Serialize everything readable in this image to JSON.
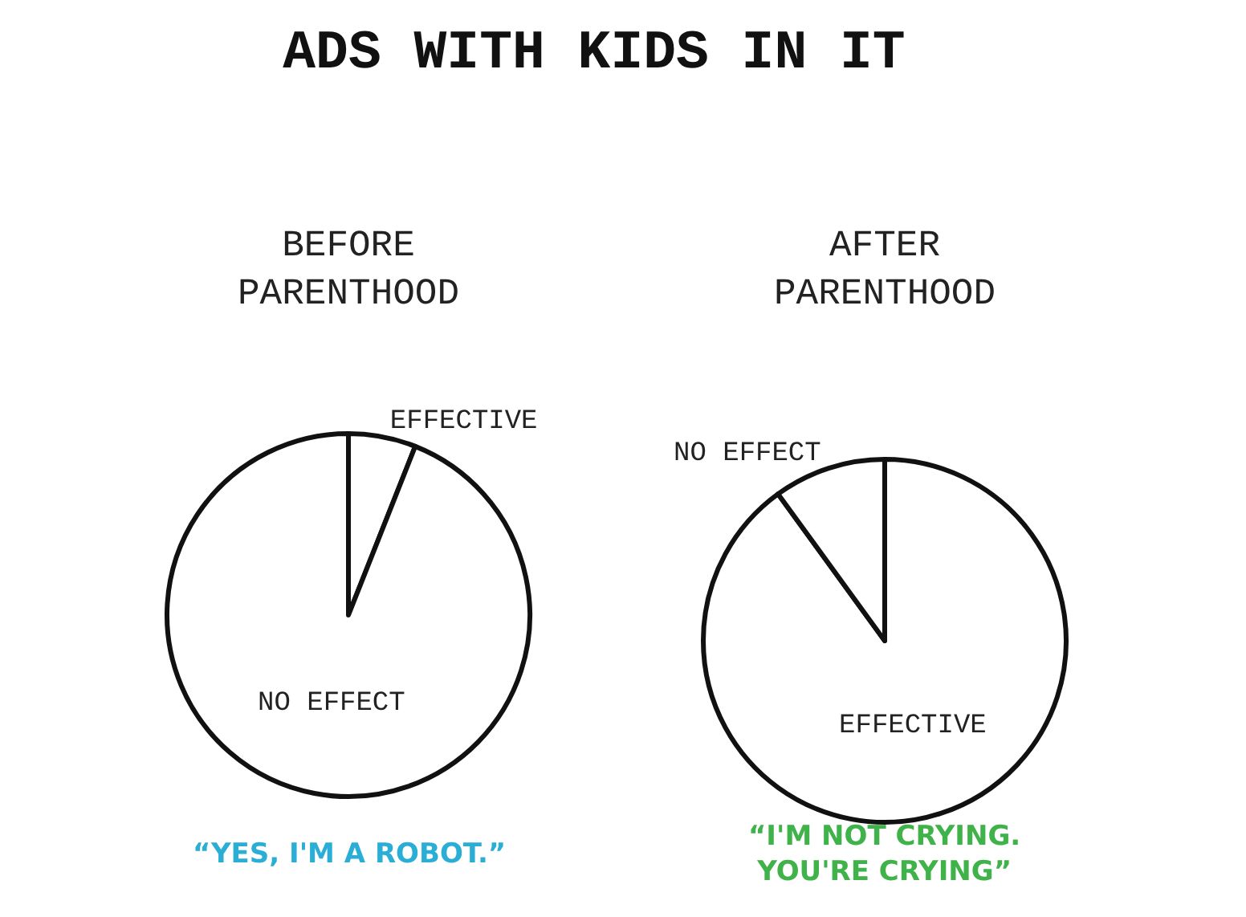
{
  "chart_data": [
    {
      "type": "pie",
      "title": "ADS WITH KIDS IN IT",
      "subtitle": "BEFORE\nPARENTHOOD",
      "categories": [
        "EFFECTIVE",
        "NO EFFECT"
      ],
      "values": [
        6,
        94
      ],
      "colors": [
        "#ffffff",
        "#ffffff"
      ],
      "annotations": [
        "“YES, I'M A ROBOT.”"
      ]
    },
    {
      "type": "pie",
      "title": "AFTER\nPARENTHOOD",
      "categories": [
        "EFFECTIVE",
        "NO EFFECT"
      ],
      "values": [
        90,
        10
      ],
      "colors": [
        "#ffffff",
        "#ffffff"
      ],
      "annotations": [
        "“I'M NOT CRYING.\nYOU'RE CRYING”"
      ]
    }
  ]
}
